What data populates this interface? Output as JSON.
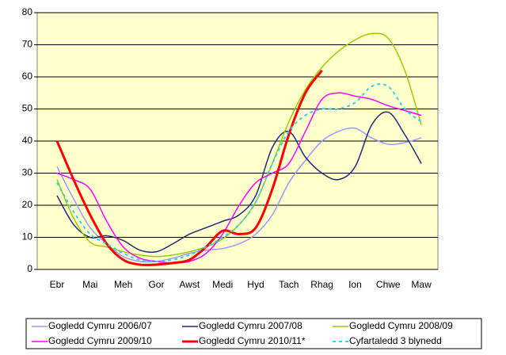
{
  "chart_data": {
    "type": "line",
    "categories": [
      "Ebr",
      null,
      "Mai",
      null,
      "Meh",
      null,
      "Gor",
      null,
      "Awst",
      null,
      "Medi",
      null,
      "Hyd",
      null,
      "Tach",
      null,
      "Rhag",
      null,
      "Ion",
      null,
      "Chwe",
      null,
      "Maw",
      null
    ],
    "series": [
      {
        "name": "Gogledd Cymru 2006/07",
        "color": "#9999ff",
        "width": 1.5,
        "dash": false,
        "values": [
          32,
          22,
          13,
          8,
          4,
          2.5,
          2.5,
          3.5,
          5,
          6,
          6.5,
          8,
          11,
          17,
          27,
          34,
          40,
          43,
          44,
          41,
          39,
          39.5,
          41,
          null
        ]
      },
      {
        "name": "Gogledd Cymru 2007/08",
        "color": "#1f2a7a",
        "width": 1.5,
        "dash": false,
        "values": [
          23,
          14,
          10,
          10.5,
          9,
          6,
          5.5,
          8,
          11,
          13,
          15,
          17,
          23,
          38,
          43,
          35,
          30,
          28,
          32,
          45,
          49,
          42,
          33,
          null
        ]
      },
      {
        "name": "Gogledd Cymru 2008/09",
        "color": "#99cc00",
        "width": 1.5,
        "dash": false,
        "values": [
          28,
          16,
          8.5,
          7,
          5.5,
          4.5,
          4,
          4.5,
          5.5,
          7,
          9.5,
          14,
          21,
          33,
          46,
          56,
          63,
          68,
          71.5,
          73.5,
          72,
          62,
          45,
          null
        ]
      },
      {
        "name": "Gogledd Cymru 2009/10",
        "color": "#ff00ff",
        "width": 1.5,
        "dash": false,
        "values": [
          30,
          28,
          25,
          15,
          7,
          3.5,
          2.5,
          2,
          2.5,
          5,
          11,
          20,
          27,
          30,
          33,
          43,
          53,
          55,
          54,
          53,
          51,
          49.5,
          48,
          null
        ]
      },
      {
        "name": "Gogledd Cymru 2010/11*",
        "color": "#ff0000",
        "width": 3,
        "dash": false,
        "values": [
          40,
          28,
          17,
          8,
          3,
          1.5,
          1.5,
          2,
          3,
          7,
          12,
          11,
          13,
          25,
          42,
          55,
          62,
          null,
          null,
          null,
          null,
          null,
          null,
          null
        ]
      },
      {
        "name": "Cyfartaledd 3 blynedd",
        "color": "#33ccff",
        "width": 2,
        "dash": true,
        "values": [
          27,
          18,
          11,
          8,
          5,
          3,
          2.5,
          3,
          4.5,
          7,
          10,
          14,
          21,
          33,
          43,
          48,
          50,
          50,
          52,
          57,
          57,
          50,
          46,
          null
        ]
      }
    ],
    "ylim": [
      0,
      80
    ],
    "yticks": [
      0,
      10,
      20,
      30,
      40,
      50,
      60,
      70,
      80
    ],
    "grid": true,
    "legend": "bottom",
    "background": "#ffffcc"
  }
}
